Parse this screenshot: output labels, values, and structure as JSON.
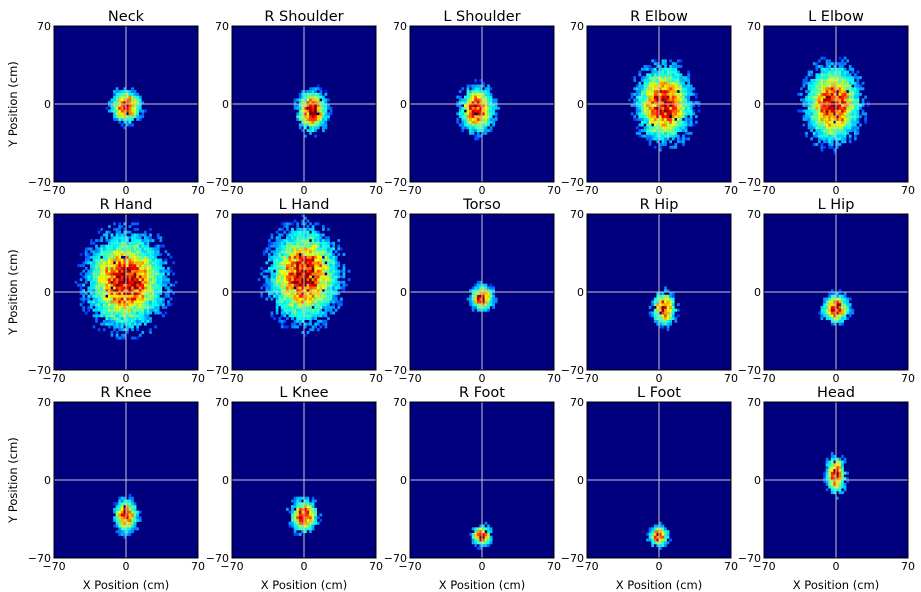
{
  "figure": {
    "xlabel": "X Position (cm)",
    "ylabel": "Y Position (cm)",
    "colormap": "jet",
    "background_color": "#00007f",
    "crosshair_color": "#c8c8c8"
  },
  "chart_data": {
    "type": "heatmap",
    "grid": {
      "rows": 3,
      "cols": 5
    },
    "xlim": [
      -70,
      70
    ],
    "ylim": [
      -70,
      70
    ],
    "xticks": [
      "−70",
      "0",
      "70"
    ],
    "yticks": [
      "70",
      "0",
      "−70"
    ],
    "xlabel": "X Position (cm)",
    "ylabel": "Y Position (cm)",
    "panels": [
      {
        "title": "Neck",
        "center": [
          0,
          -2
        ],
        "spread": [
          8,
          8
        ]
      },
      {
        "title": "R Shoulder",
        "center": [
          8,
          -6
        ],
        "spread": [
          8,
          10
        ]
      },
      {
        "title": "L Shoulder",
        "center": [
          -5,
          -5
        ],
        "spread": [
          9,
          11
        ]
      },
      {
        "title": "R Elbow",
        "center": [
          5,
          0
        ],
        "spread": [
          14,
          18
        ]
      },
      {
        "title": "L Elbow",
        "center": [
          -3,
          0
        ],
        "spread": [
          14,
          18
        ]
      },
      {
        "title": "R Hand",
        "center": [
          0,
          10
        ],
        "spread": [
          20,
          22
        ]
      },
      {
        "title": "L Hand",
        "center": [
          0,
          15
        ],
        "spread": [
          18,
          22
        ]
      },
      {
        "title": "Torso",
        "center": [
          0,
          -5
        ],
        "spread": [
          6,
          6
        ]
      },
      {
        "title": "R Hip",
        "center": [
          5,
          -15
        ],
        "spread": [
          6,
          8
        ]
      },
      {
        "title": "L Hip",
        "center": [
          0,
          -15
        ],
        "spread": [
          7,
          7
        ]
      },
      {
        "title": "R Knee",
        "center": [
          0,
          -32
        ],
        "spread": [
          6,
          8
        ]
      },
      {
        "title": "L Knee",
        "center": [
          0,
          -32
        ],
        "spread": [
          7,
          8
        ]
      },
      {
        "title": "R Foot",
        "center": [
          0,
          -50
        ],
        "spread": [
          5,
          5
        ]
      },
      {
        "title": "L Foot",
        "center": [
          0,
          -50
        ],
        "spread": [
          5,
          5
        ]
      },
      {
        "title": "Head",
        "center": [
          0,
          5
        ],
        "spread": [
          5,
          9
        ]
      }
    ]
  }
}
